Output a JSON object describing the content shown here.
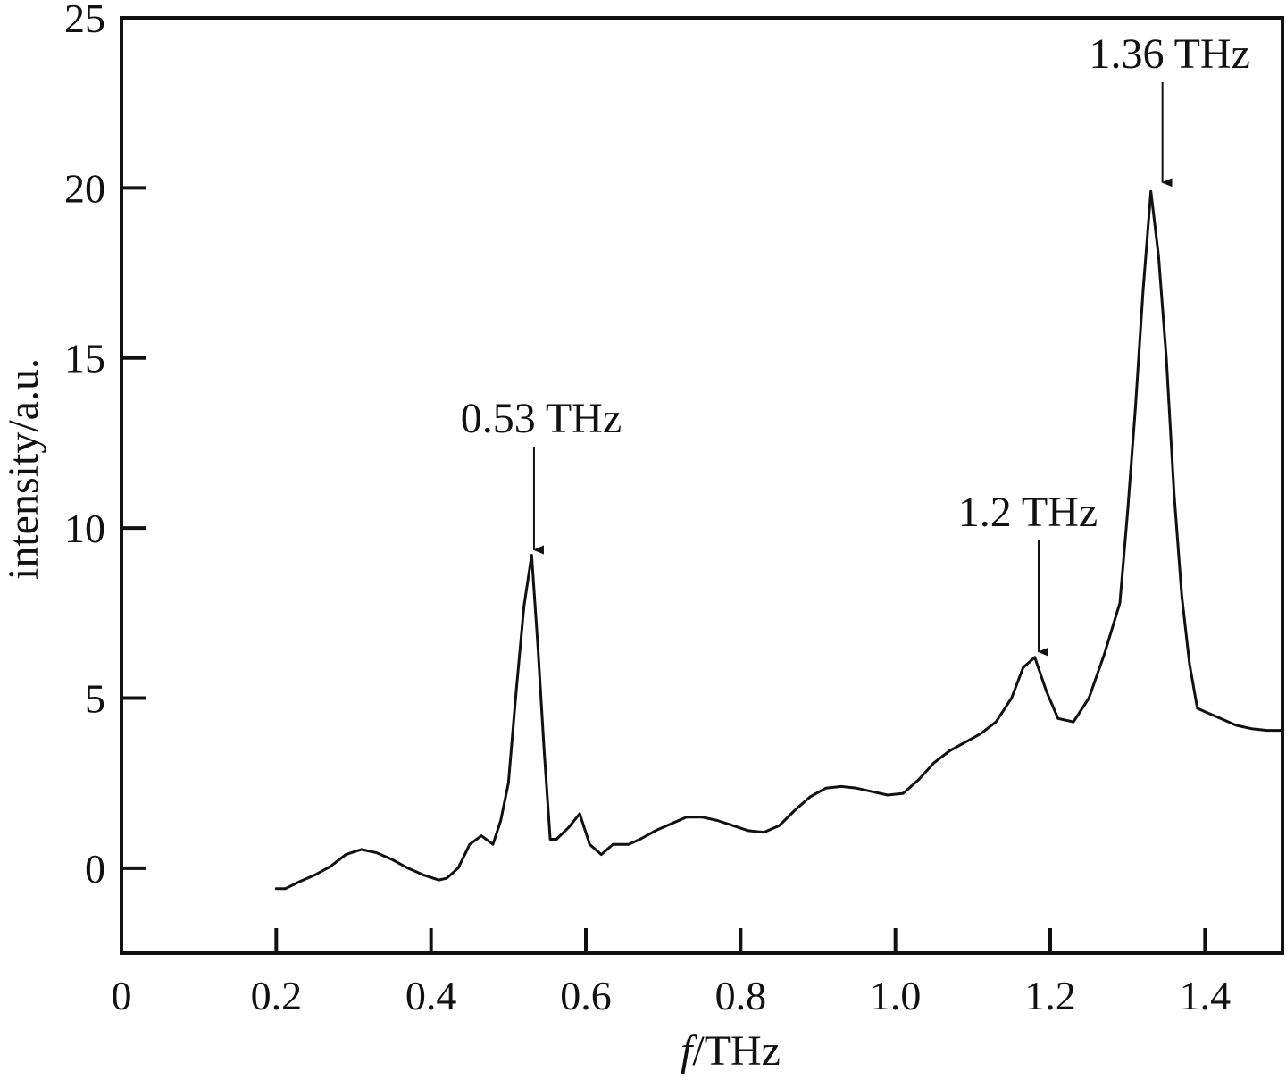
{
  "chart_data": {
    "type": "line",
    "title": "",
    "xlabel_italic": "f",
    "xlabel_rest": "/THz",
    "ylabel": "intensity/a.u.",
    "xlim": [
      0,
      1.5
    ],
    "ylim": [
      -2.5,
      25
    ],
    "x_ticks": [
      0,
      0.2,
      0.4,
      0.6,
      0.8,
      1.0,
      1.2,
      1.4
    ],
    "x_tick_labels": [
      "0",
      "0.2",
      "0.4",
      "0.6",
      "0.8",
      "1.0",
      "1.2",
      "1.4"
    ],
    "y_ticks": [
      0,
      5,
      10,
      15,
      20,
      25
    ],
    "y_tick_labels": [
      "0",
      "5",
      "10",
      "15",
      "20",
      "25"
    ],
    "grid": false,
    "colors": {
      "line": "#111111",
      "axes": "#111111"
    },
    "series": [
      {
        "x": [
          0.2,
          0.212,
          0.23,
          0.25,
          0.27,
          0.29,
          0.31,
          0.33,
          0.35,
          0.37,
          0.39,
          0.41,
          0.42,
          0.435,
          0.45,
          0.465,
          0.48,
          0.49,
          0.5,
          0.51,
          0.52,
          0.53,
          0.538,
          0.546,
          0.554,
          0.562,
          0.578,
          0.592,
          0.605,
          0.62,
          0.635,
          0.655,
          0.67,
          0.69,
          0.71,
          0.73,
          0.75,
          0.77,
          0.79,
          0.81,
          0.83,
          0.85,
          0.87,
          0.89,
          0.91,
          0.93,
          0.95,
          0.97,
          0.99,
          1.01,
          1.03,
          1.05,
          1.07,
          1.09,
          1.11,
          1.13,
          1.15,
          1.165,
          1.18,
          1.195,
          1.21,
          1.23,
          1.25,
          1.27,
          1.29,
          1.3,
          1.31,
          1.32,
          1.33,
          1.34,
          1.35,
          1.36,
          1.37,
          1.38,
          1.39,
          1.4,
          1.42,
          1.44,
          1.46,
          1.48,
          1.5
        ],
        "y": [
          -0.6,
          -0.6,
          -0.4,
          -0.2,
          0.05,
          0.4,
          0.55,
          0.45,
          0.25,
          0.0,
          -0.2,
          -0.35,
          -0.3,
          0.0,
          0.7,
          0.95,
          0.7,
          1.4,
          2.5,
          5.2,
          7.7,
          9.2,
          6.5,
          3.5,
          0.85,
          0.85,
          1.2,
          1.6,
          0.7,
          0.4,
          0.7,
          0.7,
          0.85,
          1.1,
          1.3,
          1.5,
          1.5,
          1.4,
          1.25,
          1.1,
          1.05,
          1.25,
          1.7,
          2.1,
          2.35,
          2.4,
          2.35,
          2.25,
          2.15,
          2.2,
          2.6,
          3.1,
          3.45,
          3.7,
          3.95,
          4.3,
          5.0,
          5.9,
          6.2,
          5.2,
          4.4,
          4.3,
          5.0,
          6.3,
          7.8,
          10.5,
          13.5,
          17.0,
          19.9,
          18.0,
          15.0,
          11.0,
          8.0,
          6.0,
          4.7,
          4.6,
          4.4,
          4.2,
          4.1,
          4.05,
          4.05
        ]
      }
    ],
    "annotations": [
      {
        "text": "0.53 THz",
        "x": 0.533,
        "y": 9.2
      },
      {
        "text": "1.2 THz",
        "x": 1.185,
        "y": 6.2
      },
      {
        "text": "1.36 THz",
        "x": 1.345,
        "y": 20.0
      }
    ]
  }
}
